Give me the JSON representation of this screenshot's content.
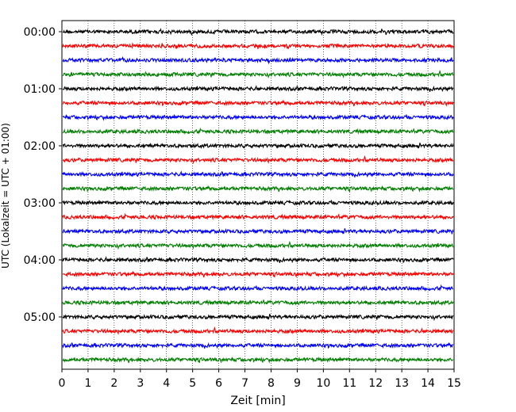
{
  "chart_data": {
    "type": "line",
    "title": "",
    "xlabel": "Zeit  [min]",
    "ylabel": "UTC (Lokalzeit = UTC + 01:00)",
    "xlim": [
      0,
      15
    ],
    "x_ticks": [
      "0",
      "1",
      "2",
      "3",
      "4",
      "5",
      "6",
      "7",
      "8",
      "9",
      "10",
      "11",
      "12",
      "13",
      "14",
      "15"
    ],
    "y_ticks": [
      "00:00",
      "01:00",
      "02:00",
      "03:00",
      "04:00",
      "05:00"
    ],
    "grid": "vertical dotted lines at each minute",
    "legend": "none",
    "trace_interval_minutes": 15,
    "series": [
      {
        "start": "00:00",
        "color": "#000000"
      },
      {
        "start": "00:15",
        "color": "#ff0000"
      },
      {
        "start": "00:30",
        "color": "#0000ff"
      },
      {
        "start": "00:45",
        "color": "#007f00"
      },
      {
        "start": "01:00",
        "color": "#000000"
      },
      {
        "start": "01:15",
        "color": "#ff0000"
      },
      {
        "start": "01:30",
        "color": "#0000ff"
      },
      {
        "start": "01:45",
        "color": "#007f00"
      },
      {
        "start": "02:00",
        "color": "#000000"
      },
      {
        "start": "02:15",
        "color": "#ff0000"
      },
      {
        "start": "02:30",
        "color": "#0000ff"
      },
      {
        "start": "02:45",
        "color": "#007f00"
      },
      {
        "start": "03:00",
        "color": "#000000"
      },
      {
        "start": "03:15",
        "color": "#ff0000"
      },
      {
        "start": "03:30",
        "color": "#0000ff"
      },
      {
        "start": "03:45",
        "color": "#007f00"
      },
      {
        "start": "04:00",
        "color": "#000000"
      },
      {
        "start": "04:15",
        "color": "#ff0000"
      },
      {
        "start": "04:30",
        "color": "#0000ff"
      },
      {
        "start": "04:45",
        "color": "#007f00"
      },
      {
        "start": "05:00",
        "color": "#000000"
      },
      {
        "start": "05:15",
        "color": "#ff0000"
      },
      {
        "start": "05:30",
        "color": "#0000ff"
      },
      {
        "start": "05:45",
        "color": "#007f00"
      }
    ]
  }
}
